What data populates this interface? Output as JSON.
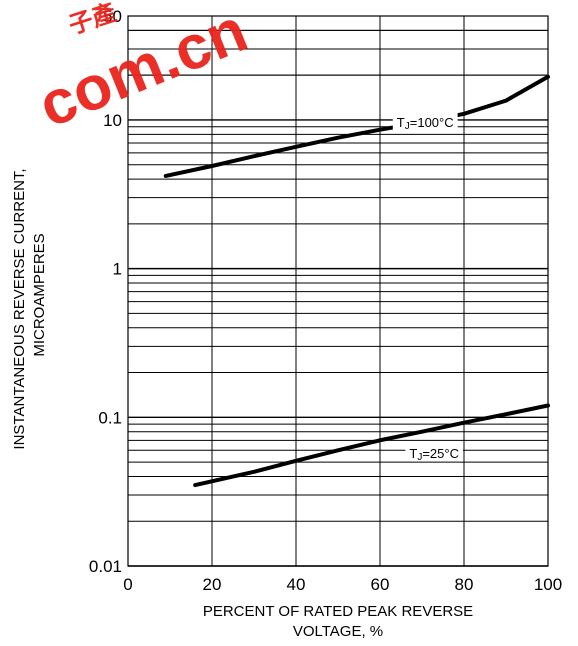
{
  "chart_data": {
    "type": "line",
    "title": "",
    "xlabel_lines": [
      "PERCENT OF RATED PEAK REVERSE",
      "VOLTAGE, %"
    ],
    "ylabel_lines": [
      "INSTANTANEOUS REVERSE CURRENT,",
      "MICROAMPERES"
    ],
    "xlim": [
      0,
      100
    ],
    "ylim": [
      0.01,
      50
    ],
    "y_scale": "log",
    "grid": true,
    "x_ticks": [
      0,
      20,
      40,
      60,
      80,
      100
    ],
    "x_tick_labels": [
      "0",
      "20",
      "40",
      "60",
      "80",
      "100"
    ],
    "y_ticks": [
      0.01,
      0.1,
      1,
      10,
      50
    ],
    "y_tick_labels": [
      "0.01",
      "0.1",
      "1",
      "10",
      "50"
    ],
    "series": [
      {
        "name": "TJ=100°C",
        "label_main": "T",
        "label_sub": "J",
        "label_rest": "=100°C",
        "x": [
          9,
          20,
          30,
          40,
          50,
          60,
          70,
          80,
          90,
          100
        ],
        "y": [
          4.2,
          4.9,
          5.7,
          6.6,
          7.6,
          8.6,
          9.6,
          11.0,
          13.5,
          19.5
        ],
        "label_at": {
          "x": 64,
          "y": 9.4
        }
      },
      {
        "name": "TJ=25°C",
        "label_main": "T",
        "label_sub": "J",
        "label_rest": "=25°C",
        "x": [
          16,
          30,
          40,
          50,
          60,
          70,
          80,
          90,
          100
        ],
        "y": [
          0.035,
          0.043,
          0.051,
          0.06,
          0.07,
          0.08,
          0.092,
          0.105,
          0.12
        ],
        "label_at": {
          "x": 67,
          "y": 0.056
        }
      }
    ]
  },
  "watermark": {
    "text_small": "子產",
    "text_large": "com.cn"
  }
}
